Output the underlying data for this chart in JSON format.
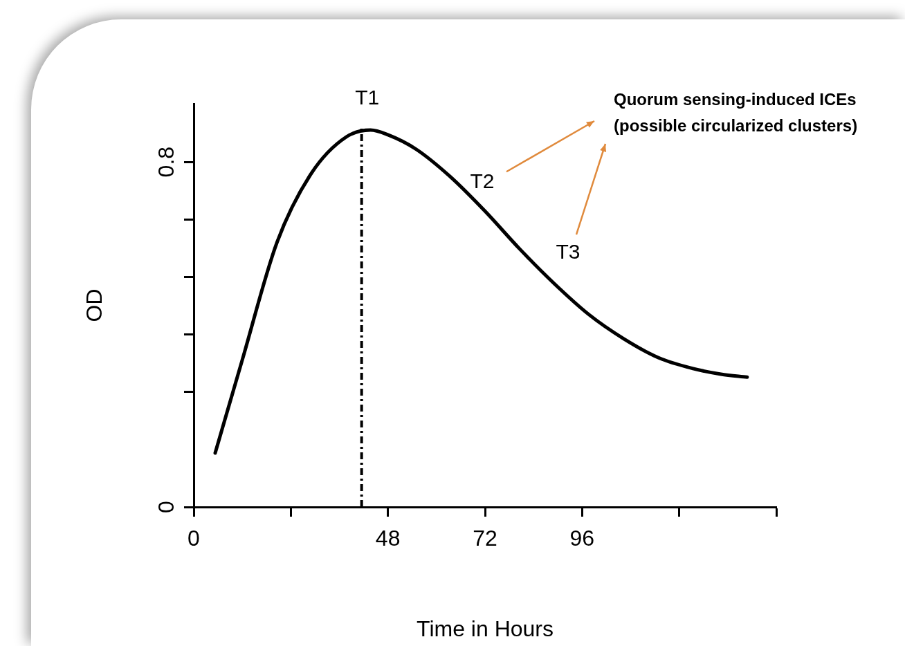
{
  "chart_data": {
    "type": "line",
    "xlabel": "Time in Hours",
    "ylabel": "OD",
    "x": [
      5.3,
      12,
      20.6,
      29.1,
      37.7,
      43.7,
      48,
      54.9,
      63.4,
      72,
      80.6,
      89.1,
      97.7,
      106.3,
      114.9,
      123.4,
      130.3,
      136.8
    ],
    "series": [
      {
        "color": "#000000",
        "values": [
          0.125,
          0.341,
          0.614,
          0.774,
          0.858,
          0.874,
          0.863,
          0.83,
          0.766,
          0.686,
          0.598,
          0.518,
          0.446,
          0.39,
          0.346,
          0.321,
          0.308,
          0.301
        ]
      }
    ],
    "xlim": [
      0,
      144
    ],
    "xticks": [
      0,
      {
        "value": 24,
        "label": null
      },
      48,
      72,
      96,
      {
        "value": 120,
        "label": null
      },
      {
        "value": 144,
        "label": null
      }
    ],
    "ylim": [
      0,
      0.935
    ],
    "yticks": [
      0,
      {
        "value": 0.2667,
        "label": null
      },
      {
        "value": 0.4,
        "label": null
      },
      {
        "value": 0.5333,
        "label": null
      },
      {
        "value": 0.6667,
        "label": null
      },
      0.8
    ],
    "ref_lines": [
      {
        "axis": "x",
        "value": 41.5,
        "label": "T1",
        "line_style": "dashed",
        "color": "#000000"
      }
    ],
    "annotations": [
      {
        "text": "T2",
        "x": 72,
        "y": 0.686
      },
      {
        "text": "T3",
        "x": 89.1,
        "y": 0.518
      },
      "Quorum sensing-induced ICEs\n(possible circularized clusters)"
    ],
    "grid": false,
    "legend": false,
    "marker": "none",
    "line_style": "solid"
  }
}
